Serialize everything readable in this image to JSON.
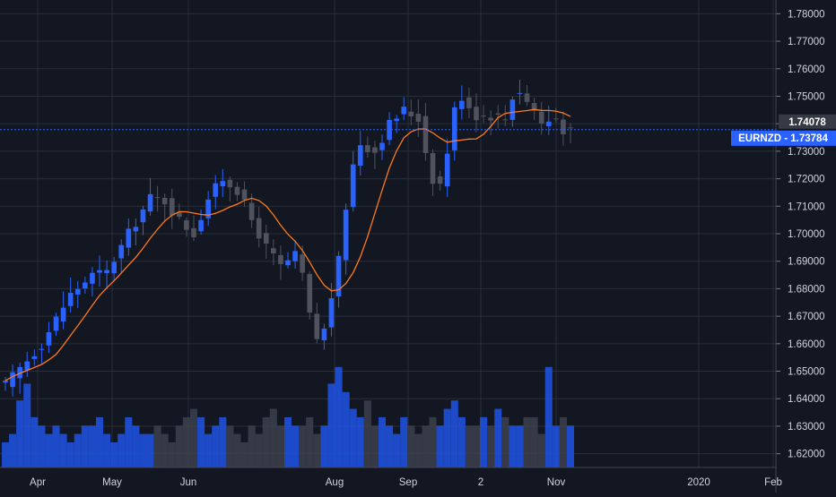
{
  "chart_data": {
    "type": "candlestick",
    "symbol": "EURNZD",
    "price_axis": {
      "ticks": [
        "1.78000",
        "1.77000",
        "1.76000",
        "1.75000",
        "1.74000",
        "1.73000",
        "1.72000",
        "1.71000",
        "1.70000",
        "1.69000",
        "1.68000",
        "1.67000",
        "1.66000",
        "1.65000",
        "1.64000",
        "1.63000",
        "1.62000"
      ],
      "min": 1.615,
      "max": 1.785
    },
    "time_axis": {
      "labels": [
        "Apr",
        "May",
        "Jun",
        "Aug",
        "Sep",
        "2",
        "Nov",
        "2020",
        "Feb"
      ]
    },
    "last_price_label": "EURNZD - 1.73784",
    "last_price": 1.73784,
    "marker_label": "1.74078",
    "marker_price": 1.74078,
    "price_path": [
      [
        0,
        1.645
      ],
      [
        5,
        1.66
      ],
      [
        9,
        1.678
      ],
      [
        12,
        1.685
      ],
      [
        14,
        1.686
      ],
      [
        17,
        1.7
      ],
      [
        20,
        1.713
      ],
      [
        22,
        1.712
      ],
      [
        24,
        1.705
      ],
      [
        26,
        1.7
      ],
      [
        28,
        1.713
      ],
      [
        30,
        1.72
      ],
      [
        32,
        1.716
      ],
      [
        34,
        1.705
      ],
      [
        36,
        1.695
      ],
      [
        38,
        1.688
      ],
      [
        40,
        1.692
      ],
      [
        41,
        1.685
      ],
      [
        42,
        1.67
      ],
      [
        43,
        1.662
      ],
      [
        44,
        1.665
      ],
      [
        46,
        1.69
      ],
      [
        47,
        1.71
      ],
      [
        48,
        1.725
      ],
      [
        49,
        1.733
      ],
      [
        51,
        1.73
      ],
      [
        53,
        1.74
      ],
      [
        55,
        1.745
      ],
      [
        57,
        1.742
      ],
      [
        58,
        1.73
      ],
      [
        59,
        1.72
      ],
      [
        60,
        1.718
      ],
      [
        61,
        1.73
      ],
      [
        62,
        1.745
      ],
      [
        63,
        1.75
      ],
      [
        65,
        1.743
      ],
      [
        67,
        1.743
      ],
      [
        69,
        1.742
      ],
      [
        70,
        1.75
      ],
      [
        71,
        1.752
      ],
      [
        72,
        1.748
      ],
      [
        73,
        1.745
      ],
      [
        74,
        1.74
      ],
      [
        76,
        1.742
      ],
      [
        77,
        1.738
      ],
      [
        78,
        1.737
      ]
    ],
    "candle_count": 79,
    "ma_period": 8,
    "volume_pattern": [
      0.3,
      0.4,
      0.8,
      1.0,
      0.6,
      0.5,
      0.4,
      0.5,
      0.4,
      0.3,
      0.4,
      0.5,
      0.5,
      0.6,
      0.4,
      0.3,
      0.4,
      0.6,
      0.5,
      0.4,
      0.4,
      0.5,
      0.4,
      0.3,
      0.5,
      0.6,
      0.7,
      0.6,
      0.4,
      0.5,
      0.6,
      0.5,
      0.4,
      0.3,
      0.5,
      0.4,
      0.6,
      0.7,
      0.5,
      0.6,
      0.5,
      0.5,
      0.6,
      0.4,
      0.5,
      1.0,
      1.2,
      0.9,
      0.7,
      0.6,
      0.8,
      0.5,
      0.6,
      0.5,
      0.4,
      0.6,
      0.5,
      0.4,
      0.5,
      0.6,
      0.5,
      0.7,
      0.8,
      0.6,
      0.5,
      0.5,
      0.6,
      0.5,
      0.7,
      0.6,
      0.5,
      0.5,
      0.6,
      0.6,
      0.4,
      1.2,
      0.5,
      0.6,
      0.5
    ],
    "colors": {
      "background": "#131722",
      "grid": "#2a2e39",
      "up": "#2962ff",
      "down": "#50535e",
      "ma": "#ff7a1a",
      "last_price_bg": "#2962ff",
      "marker_bg": "#363a45",
      "axis_text": "#d1d4dc"
    },
    "grid": true,
    "legend": "none"
  }
}
